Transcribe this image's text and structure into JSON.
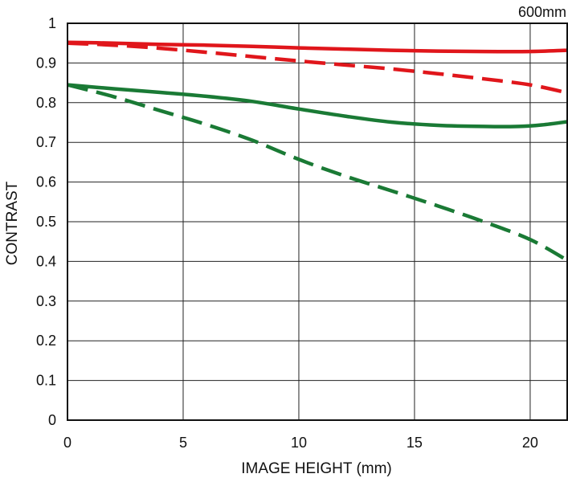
{
  "chart_data": {
    "type": "line",
    "title": "",
    "corner_label": "600mm",
    "xlabel": "IMAGE HEIGHT (mm)",
    "ylabel": "CONTRAST",
    "xlim": [
      0,
      21.6
    ],
    "ylim": [
      0,
      1
    ],
    "grid": true,
    "x_ticks": [
      0,
      5,
      10,
      15,
      20
    ],
    "y_ticks": [
      0,
      0.1,
      0.2,
      0.3,
      0.4,
      0.5,
      0.6,
      0.7,
      0.8,
      0.9,
      1
    ],
    "y_tick_labels": [
      "0",
      "0.1",
      "0.2",
      "0.3",
      "0.4",
      "0.5",
      "0.6",
      "0.7",
      "0.8",
      "0.9",
      "1"
    ],
    "series": [
      {
        "color": "#e0161b",
        "style": "solid",
        "x": [
          0,
          2,
          4,
          6,
          8,
          10,
          12,
          14,
          16,
          18,
          20,
          21.6
        ],
        "y": [
          0.952,
          0.95,
          0.947,
          0.945,
          0.942,
          0.938,
          0.935,
          0.932,
          0.93,
          0.929,
          0.929,
          0.932
        ]
      },
      {
        "color": "#e0161b",
        "style": "dashed",
        "x": [
          0,
          2,
          4,
          6,
          8,
          10,
          12,
          14,
          16,
          18,
          20,
          21.6
        ],
        "y": [
          0.95,
          0.945,
          0.937,
          0.927,
          0.916,
          0.905,
          0.895,
          0.885,
          0.873,
          0.86,
          0.845,
          0.825
        ]
      },
      {
        "color": "#1a7a35",
        "style": "solid",
        "x": [
          0,
          2,
          4,
          6,
          8,
          10,
          12,
          14,
          16,
          18,
          19.5,
          20.5,
          21.6
        ],
        "y": [
          0.845,
          0.835,
          0.826,
          0.816,
          0.803,
          0.784,
          0.766,
          0.751,
          0.743,
          0.74,
          0.74,
          0.744,
          0.752
        ]
      },
      {
        "color": "#1a7a35",
        "style": "dashed",
        "x": [
          0,
          2,
          4,
          6,
          8,
          10,
          12,
          14,
          16,
          18,
          20,
          21.6
        ],
        "y": [
          0.845,
          0.815,
          0.78,
          0.745,
          0.705,
          0.657,
          0.615,
          0.578,
          0.54,
          0.5,
          0.455,
          0.403
        ]
      }
    ]
  }
}
